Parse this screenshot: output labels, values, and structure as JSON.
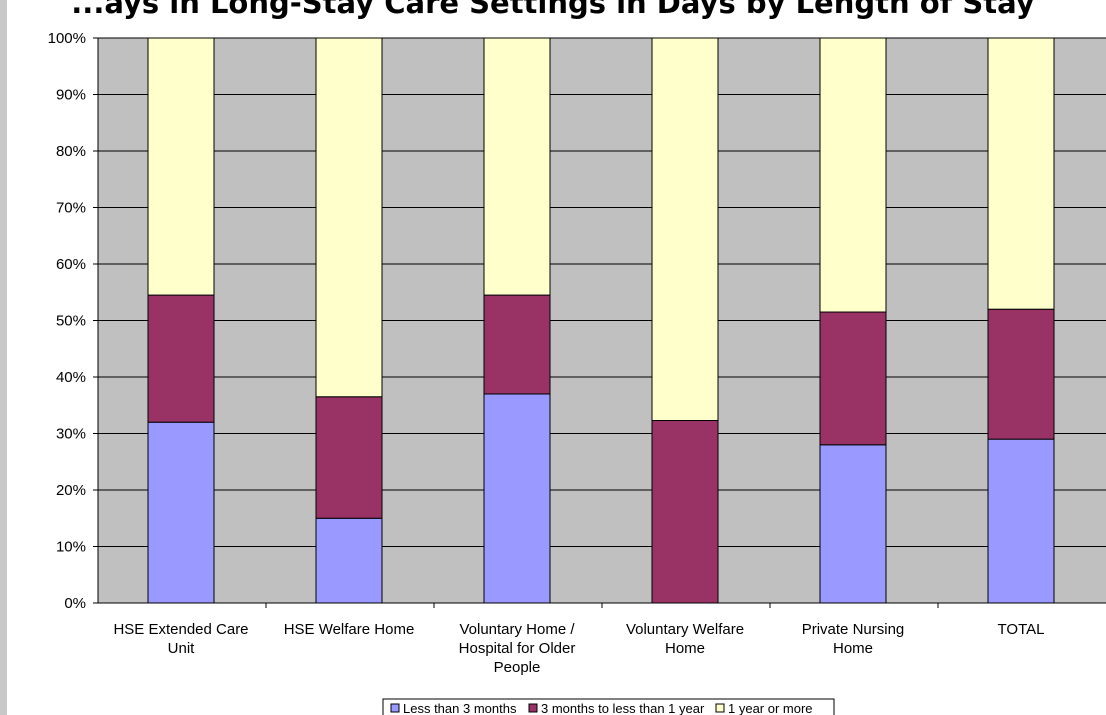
{
  "chart_data": {
    "type": "bar",
    "stacked": "percent",
    "title": "...ays in Long-Stay Care Settings in Days by Length of Stay",
    "categories": [
      [
        "HSE Extended Care",
        "Unit"
      ],
      [
        "HSE Welfare Home"
      ],
      [
        "Voluntary Home /",
        "Hospital for Older",
        "People"
      ],
      [
        "Voluntary Welfare",
        "Home"
      ],
      [
        "Private Nursing",
        "Home"
      ],
      [
        "TOTAL"
      ]
    ],
    "series": [
      {
        "name": "Less than 3 months",
        "color": "#9999ff",
        "values": [
          32,
          15,
          37,
          0,
          28,
          29
        ]
      },
      {
        "name": "3 months to less than 1 year",
        "color": "#993366",
        "values": [
          22.5,
          21.5,
          17.5,
          32.3,
          23.5,
          23
        ]
      },
      {
        "name": "1 year or more",
        "color": "#ffffcc",
        "values": [
          45.5,
          63.5,
          45.5,
          67.7,
          48.5,
          48
        ]
      }
    ],
    "ylim": [
      0,
      100
    ],
    "yticks": [
      "0%",
      "10%",
      "20%",
      "30%",
      "40%",
      "50%",
      "60%",
      "70%",
      "80%",
      "90%",
      "100%"
    ],
    "plot_background": "#c0c0c0",
    "grid": true,
    "legend_position": "bottom"
  }
}
